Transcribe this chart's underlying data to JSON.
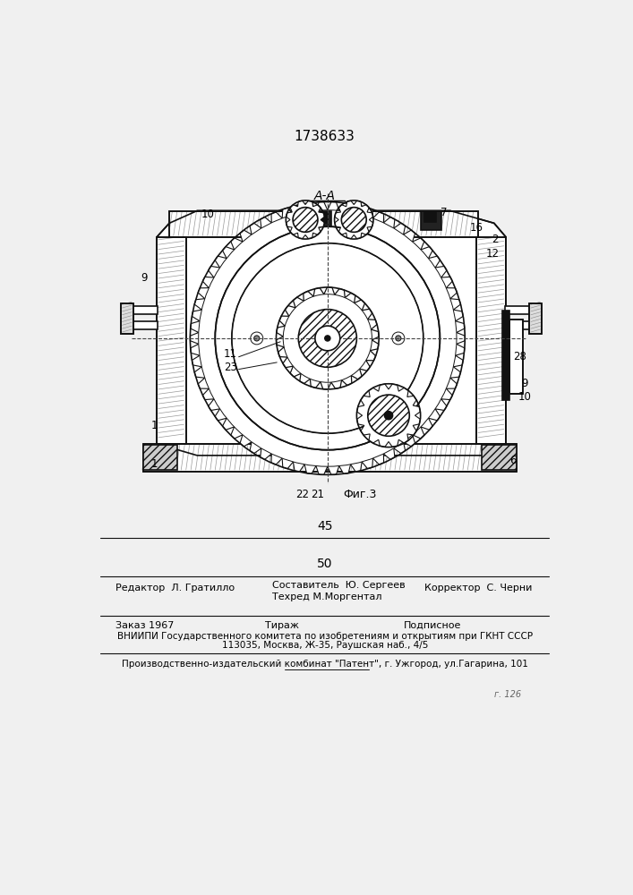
{
  "patent_number": "1738633",
  "section_label": "А-А",
  "fig_label": "Фиг.3",
  "page_number_top": "45",
  "page_number_bottom": "50",
  "editor_line": "Редактор  Л. Гратилло",
  "composer_line1": "Составитель  Ю. Сергеев",
  "composer_line2": "Техред М.Моргентал",
  "corrector_line": "Корректор  С. Черни",
  "order_line": "Заказ 1967",
  "tirazh_line": "Тираж",
  "podpisnoe_line": "Подписное",
  "vniip_line1": "ВНИИПИ Государственного комитета по изобретениям и открытиям при ГКНТ СССР",
  "vniip_line2": "113035, Москва, Ж-35, Раушская наб., 4/5",
  "factory_line": "Производственно-издательский комбинат \"Патент\", г. Ужгород, ул.Гагарина, 101",
  "bg_color": "#f0f0f0",
  "line_color": "#111111"
}
